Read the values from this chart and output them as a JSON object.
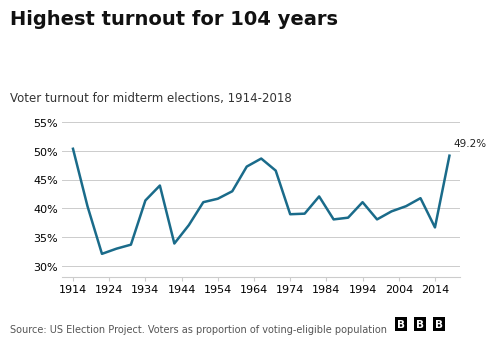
{
  "title": "Highest turnout for 104 years",
  "subtitle": "Voter turnout for midterm elections, 1914-2018",
  "source": "Source: US Election Project. Voters as proportion of voting-eligible population",
  "years": [
    1914,
    1918,
    1922,
    1926,
    1930,
    1934,
    1938,
    1942,
    1946,
    1950,
    1954,
    1958,
    1962,
    1966,
    1970,
    1974,
    1978,
    1982,
    1986,
    1990,
    1994,
    1998,
    2002,
    2006,
    2010,
    2014,
    2018
  ],
  "values": [
    50.4,
    40.4,
    32.1,
    33.0,
    33.7,
    41.4,
    44.0,
    33.9,
    37.1,
    41.1,
    41.7,
    43.0,
    47.3,
    48.7,
    46.6,
    39.0,
    39.1,
    42.1,
    38.1,
    38.4,
    41.1,
    38.1,
    39.5,
    40.4,
    41.8,
    36.7,
    49.2
  ],
  "line_color": "#1a6b8a",
  "annotation_text": "49.2%",
  "ylim": [
    28,
    57
  ],
  "yticks": [
    30,
    35,
    40,
    45,
    50,
    55
  ],
  "ytick_labels": [
    "30%",
    "35%",
    "40%",
    "45%",
    "50%",
    "55%"
  ],
  "xticks": [
    1914,
    1924,
    1934,
    1944,
    1954,
    1964,
    1974,
    1984,
    1994,
    2004,
    2014
  ],
  "xlim": [
    1911,
    2021
  ],
  "bg_color": "#ffffff",
  "grid_color": "#cccccc",
  "title_fontsize": 14,
  "subtitle_fontsize": 8.5,
  "source_fontsize": 7,
  "tick_fontsize": 8,
  "line_width": 1.8,
  "annotation_fontsize": 7.5
}
